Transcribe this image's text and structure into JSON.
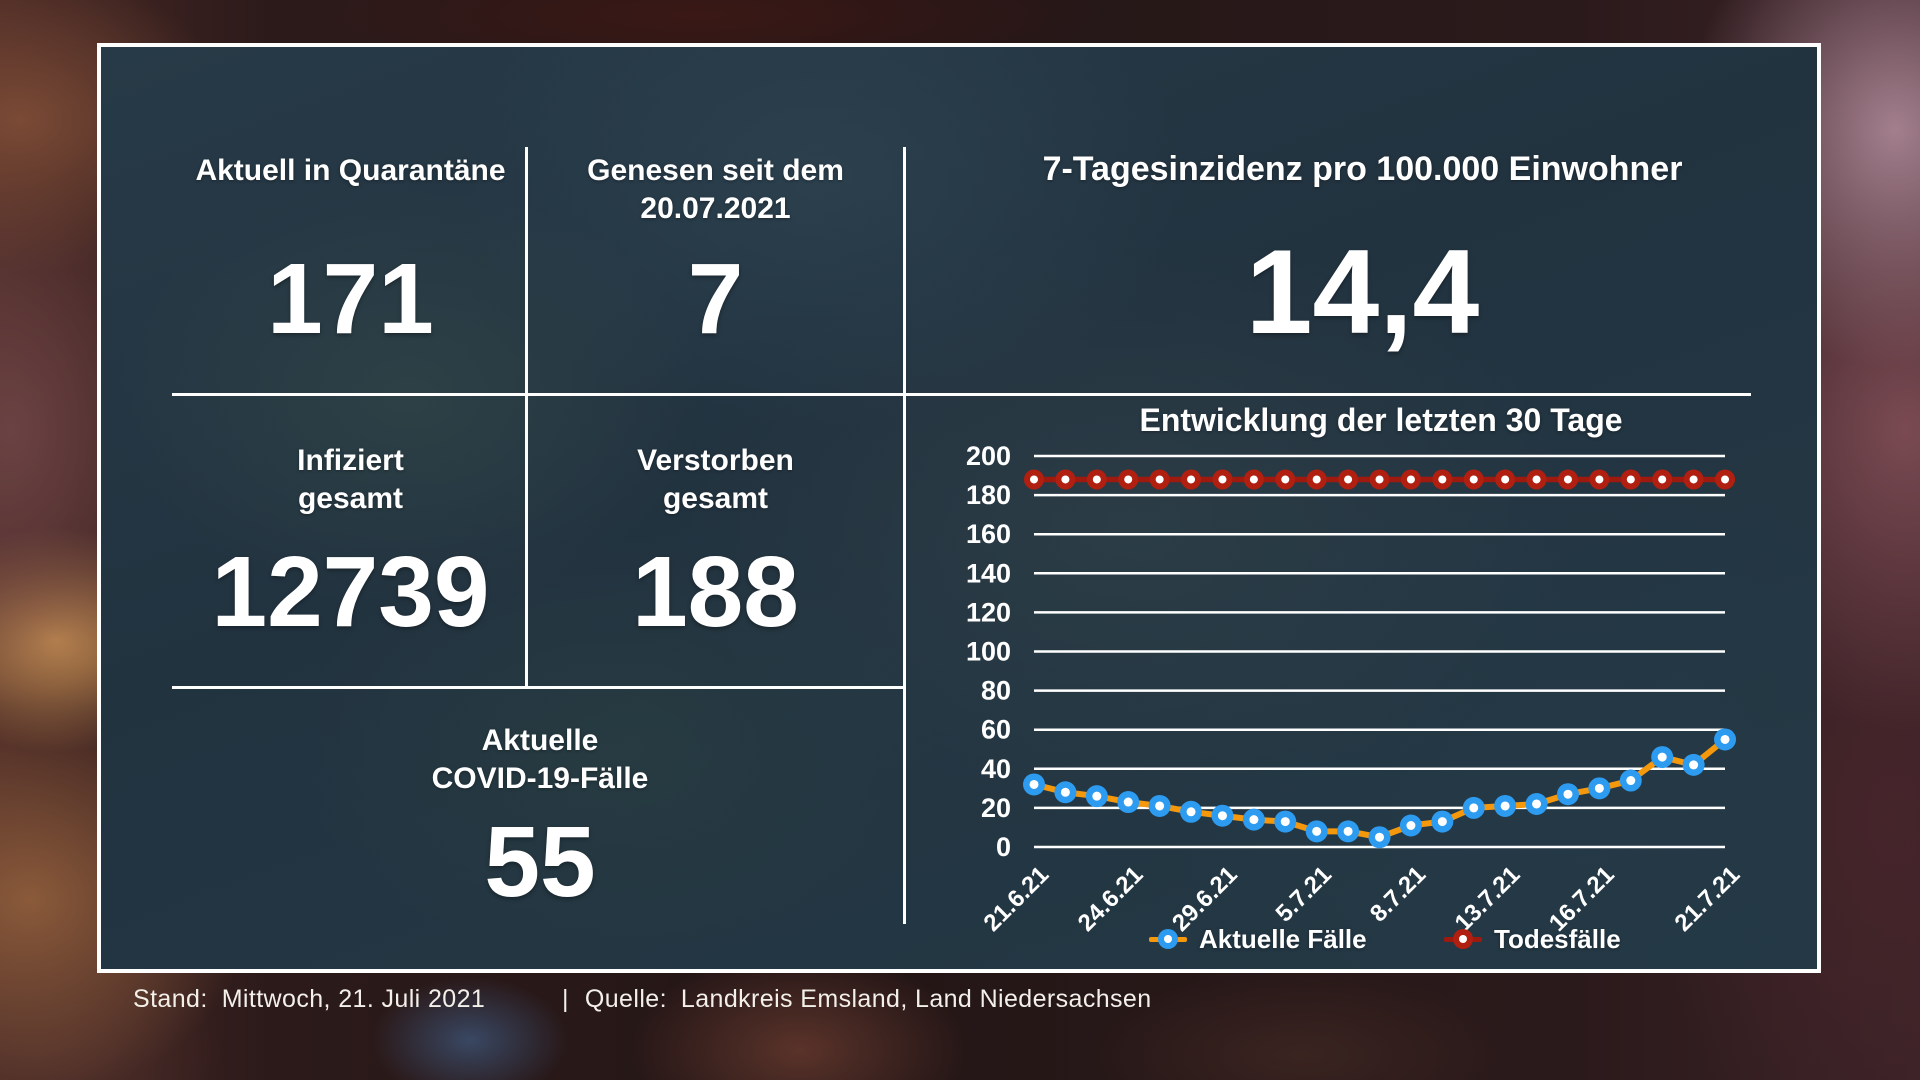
{
  "stats": {
    "quarantine": {
      "label": "Aktuell in Quarantäne",
      "value": "171"
    },
    "recovered": {
      "label_line1": "Genesen seit dem",
      "label_line2": "20.07.2021",
      "value": "7"
    },
    "incidence": {
      "label": "7-Tagesinzidenz pro 100.000 Einwohner",
      "value": "14,4"
    },
    "infected": {
      "label_line1": "Infiziert",
      "label_line2": "gesamt",
      "value": "12739"
    },
    "deceased": {
      "label_line1": "Verstorben",
      "label_line2": "gesamt",
      "value": "188"
    },
    "active": {
      "label_line1": "Aktuelle",
      "label_line2": "COVID-19-Fälle",
      "value": "55"
    }
  },
  "chart_data": {
    "type": "line",
    "title": "Entwicklung der letzten 30 Tage",
    "n_points": 23,
    "ylim": [
      0,
      200
    ],
    "ytick_step": 20,
    "grid": true,
    "legend_position": "bottom",
    "x_tick_labels": [
      {
        "index": 0,
        "label": "21.6.21"
      },
      {
        "index": 3,
        "label": "24.6.21"
      },
      {
        "index": 6,
        "label": "29.6.21"
      },
      {
        "index": 9,
        "label": "5.7.21"
      },
      {
        "index": 12,
        "label": "8.7.21"
      },
      {
        "index": 15,
        "label": "13.7.21"
      },
      {
        "index": 18,
        "label": "16.7.21"
      },
      {
        "index": 22,
        "label": "21.7.21"
      }
    ],
    "series": [
      {
        "name": "Aktuelle Fälle",
        "line_color": "#f5980c",
        "marker_color": "#2d9bf0",
        "values": [
          32,
          28,
          26,
          23,
          21,
          18,
          16,
          14,
          13,
          8,
          8,
          5,
          11,
          13,
          20,
          21,
          22,
          27,
          30,
          34,
          46,
          42,
          55
        ]
      },
      {
        "name": "Todesfälle",
        "line_color": "#9e1a0e",
        "marker_color": "#b01f10",
        "values": [
          188,
          188,
          188,
          188,
          188,
          188,
          188,
          188,
          188,
          188,
          188,
          188,
          188,
          188,
          188,
          188,
          188,
          188,
          188,
          188,
          188,
          188,
          188
        ]
      }
    ]
  },
  "footer": {
    "stand_label": "Stand:",
    "stand_value": "Mittwoch, 21. Juli 2021",
    "separator": "|",
    "quelle_label": "Quelle:",
    "quelle_value": "Landkreis Emsland, Land Niedersachsen"
  }
}
